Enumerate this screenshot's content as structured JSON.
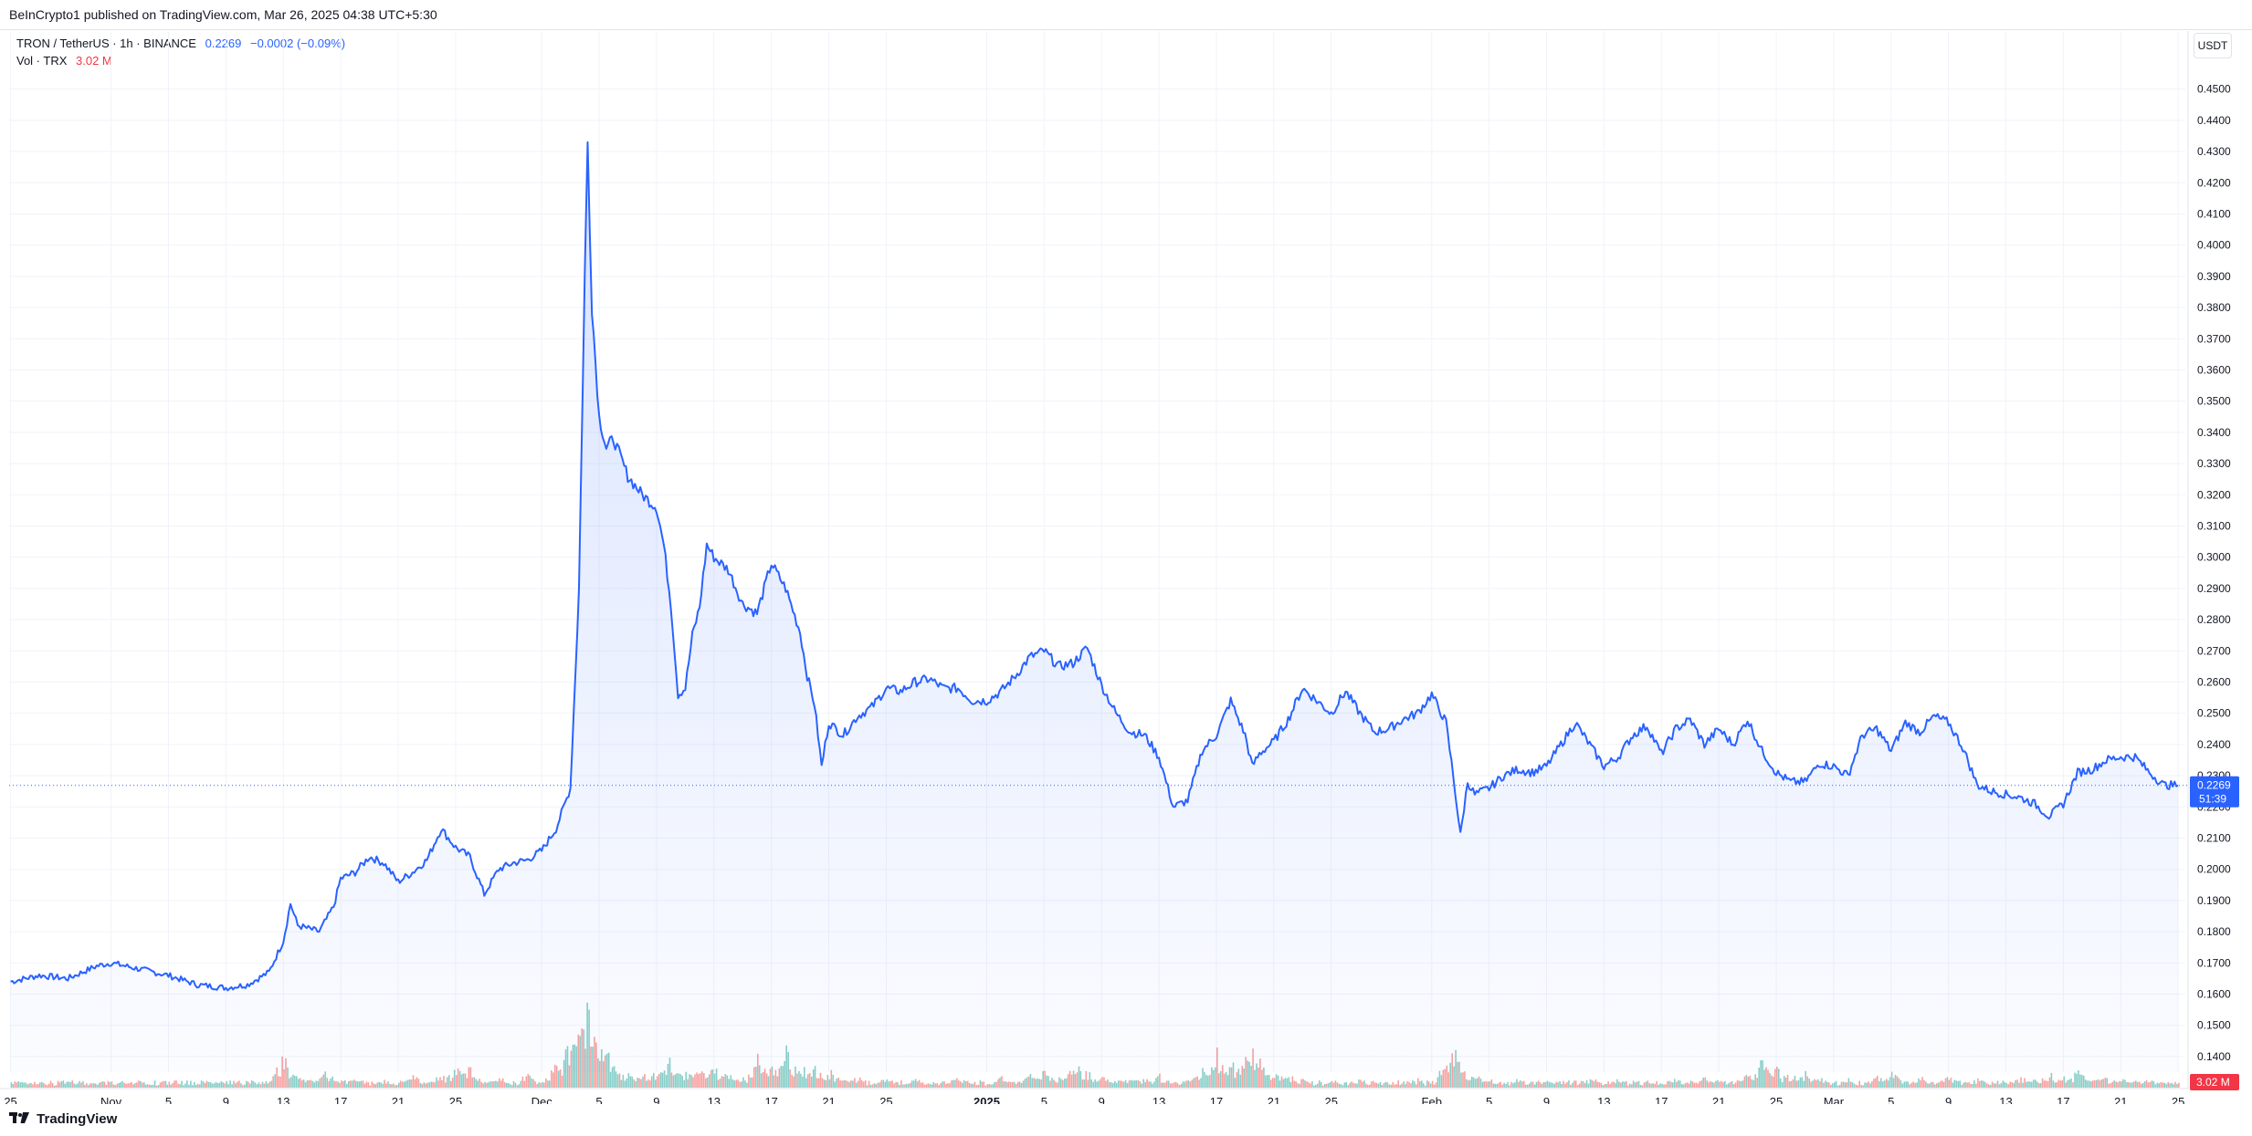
{
  "header": {
    "published": "BeInCrypto1 published on TradingView.com, Mar 26, 2025 04:38 UTC+5:30"
  },
  "legend": {
    "symbol": "TRON / TetherUS · 1h · BINANCE",
    "last_price": "0.2269",
    "change": "−0.0002 (−0.09%)",
    "volume_label": "Vol · TRX",
    "volume_value": "3.02 M"
  },
  "axis": {
    "unit": "USDT",
    "price_badge": "0.2269",
    "countdown": "51:39",
    "volume_badge": "3.02 M"
  },
  "footer": {
    "brand": "TradingView"
  },
  "colors": {
    "line": "#2962ff",
    "up_volume": "#26a69a",
    "down_volume": "#ef5350",
    "grid": "#f0f3fa"
  },
  "chart_data": {
    "type": "area",
    "title": "TRON / TetherUS · 1h · BINANCE",
    "ylabel": "USDT",
    "ylim": [
      0.135,
      0.4575
    ],
    "y_ticks": [
      "0.1400",
      "0.1500",
      "0.1600",
      "0.1700",
      "0.1800",
      "0.1900",
      "0.2000",
      "0.2100",
      "0.2200",
      "0.2300",
      "0.2400",
      "0.2500",
      "0.2600",
      "0.2700",
      "0.2800",
      "0.2900",
      "0.3000",
      "0.3100",
      "0.3200",
      "0.3300",
      "0.3400",
      "0.3500",
      "0.3600",
      "0.3700",
      "0.3800",
      "0.3900",
      "0.4000",
      "0.4100",
      "0.4200",
      "0.4300",
      "0.4400",
      "0.4500"
    ],
    "x_ticks": [
      {
        "label": "25",
        "day": 0
      },
      {
        "label": "Nov",
        "day": 7
      },
      {
        "label": "5",
        "day": 11
      },
      {
        "label": "9",
        "day": 15
      },
      {
        "label": "13",
        "day": 19
      },
      {
        "label": "17",
        "day": 23
      },
      {
        "label": "21",
        "day": 27
      },
      {
        "label": "25",
        "day": 31
      },
      {
        "label": "Dec",
        "day": 37
      },
      {
        "label": "5",
        "day": 41
      },
      {
        "label": "9",
        "day": 45
      },
      {
        "label": "13",
        "day": 49
      },
      {
        "label": "17",
        "day": 53
      },
      {
        "label": "21",
        "day": 57
      },
      {
        "label": "25",
        "day": 61
      },
      {
        "label": "2025",
        "day": 68
      },
      {
        "label": "5",
        "day": 72
      },
      {
        "label": "9",
        "day": 76
      },
      {
        "label": "13",
        "day": 80
      },
      {
        "label": "17",
        "day": 84
      },
      {
        "label": "21",
        "day": 88
      },
      {
        "label": "25",
        "day": 92
      },
      {
        "label": "Feb",
        "day": 99
      },
      {
        "label": "5",
        "day": 103
      },
      {
        "label": "9",
        "day": 107
      },
      {
        "label": "13",
        "day": 111
      },
      {
        "label": "17",
        "day": 115
      },
      {
        "label": "21",
        "day": 119
      },
      {
        "label": "25",
        "day": 123
      },
      {
        "label": "Mar",
        "day": 127
      },
      {
        "label": "5",
        "day": 131
      },
      {
        "label": "9",
        "day": 135
      },
      {
        "label": "13",
        "day": 139
      },
      {
        "label": "17",
        "day": 143
      },
      {
        "label": "21",
        "day": 147
      },
      {
        "label": "25",
        "day": 151
      }
    ],
    "x_range_days": [
      -0.1,
      151.5
    ],
    "series": [
      {
        "price": [
          [
            0,
            0.164
          ],
          [
            2,
            0.166
          ],
          [
            4,
            0.165
          ],
          [
            6,
            0.169
          ],
          [
            7,
            0.17
          ],
          [
            9,
            0.168
          ],
          [
            11,
            0.166
          ],
          [
            13,
            0.163
          ],
          [
            15,
            0.162
          ],
          [
            16.5,
            0.163
          ],
          [
            18,
            0.167
          ],
          [
            19,
            0.177
          ],
          [
            19.5,
            0.189
          ],
          [
            20,
            0.182
          ],
          [
            21.5,
            0.18
          ],
          [
            22.5,
            0.188
          ],
          [
            23,
            0.197
          ],
          [
            24,
            0.199
          ],
          [
            25,
            0.204
          ],
          [
            26,
            0.202
          ],
          [
            27,
            0.196
          ],
          [
            28,
            0.199
          ],
          [
            29,
            0.203
          ],
          [
            30,
            0.213
          ],
          [
            31,
            0.207
          ],
          [
            32,
            0.204
          ],
          [
            33,
            0.192
          ],
          [
            34,
            0.2
          ],
          [
            35,
            0.202
          ],
          [
            36,
            0.203
          ],
          [
            37,
            0.206
          ],
          [
            38,
            0.213
          ],
          [
            39,
            0.226
          ],
          [
            39.6,
            0.29
          ],
          [
            40,
            0.39
          ],
          [
            40.2,
            0.433
          ],
          [
            40.5,
            0.38
          ],
          [
            41,
            0.345
          ],
          [
            41.5,
            0.335
          ],
          [
            42,
            0.338
          ],
          [
            43,
            0.326
          ],
          [
            44,
            0.32
          ],
          [
            45,
            0.316
          ],
          [
            45.5,
            0.304
          ],
          [
            46,
            0.285
          ],
          [
            46.5,
            0.256
          ],
          [
            47,
            0.258
          ],
          [
            47.5,
            0.275
          ],
          [
            48,
            0.284
          ],
          [
            48.5,
            0.304
          ],
          [
            49,
            0.3
          ],
          [
            50,
            0.296
          ],
          [
            51,
            0.285
          ],
          [
            52,
            0.282
          ],
          [
            53,
            0.298
          ],
          [
            54,
            0.29
          ],
          [
            55,
            0.276
          ],
          [
            55.5,
            0.262
          ],
          [
            56,
            0.253
          ],
          [
            56.5,
            0.233
          ],
          [
            57,
            0.247
          ],
          [
            58,
            0.243
          ],
          [
            59,
            0.249
          ],
          [
            60,
            0.252
          ],
          [
            61,
            0.258
          ],
          [
            62,
            0.257
          ],
          [
            63,
            0.26
          ],
          [
            64,
            0.261
          ],
          [
            65,
            0.258
          ],
          [
            66,
            0.258
          ],
          [
            67,
            0.254
          ],
          [
            68,
            0.254
          ],
          [
            69,
            0.257
          ],
          [
            70,
            0.262
          ],
          [
            71,
            0.268
          ],
          [
            72,
            0.27
          ],
          [
            73,
            0.265
          ],
          [
            74,
            0.266
          ],
          [
            75,
            0.271
          ],
          [
            76,
            0.259
          ],
          [
            77,
            0.25
          ],
          [
            78,
            0.244
          ],
          [
            79,
            0.243
          ],
          [
            80,
            0.236
          ],
          [
            81,
            0.22
          ],
          [
            82,
            0.222
          ],
          [
            83,
            0.238
          ],
          [
            84,
            0.243
          ],
          [
            85,
            0.254
          ],
          [
            86,
            0.243
          ],
          [
            86.5,
            0.233
          ],
          [
            87,
            0.237
          ],
          [
            88,
            0.241
          ],
          [
            89,
            0.248
          ],
          [
            90,
            0.258
          ],
          [
            91,
            0.254
          ],
          [
            92,
            0.25
          ],
          [
            93,
            0.257
          ],
          [
            94,
            0.25
          ],
          [
            95,
            0.244
          ],
          [
            96,
            0.245
          ],
          [
            97,
            0.248
          ],
          [
            98,
            0.25
          ],
          [
            99,
            0.256
          ],
          [
            100,
            0.247
          ],
          [
            100.5,
            0.23
          ],
          [
            101,
            0.211
          ],
          [
            101.5,
            0.228
          ],
          [
            102,
            0.224
          ],
          [
            103,
            0.226
          ],
          [
            104,
            0.23
          ],
          [
            105,
            0.232
          ],
          [
            106,
            0.231
          ],
          [
            107,
            0.233
          ],
          [
            108,
            0.24
          ],
          [
            109,
            0.247
          ],
          [
            110,
            0.24
          ],
          [
            111,
            0.233
          ],
          [
            112,
            0.236
          ],
          [
            113,
            0.243
          ],
          [
            114,
            0.246
          ],
          [
            115,
            0.237
          ],
          [
            116,
            0.245
          ],
          [
            117,
            0.248
          ],
          [
            118,
            0.24
          ],
          [
            119,
            0.245
          ],
          [
            120,
            0.24
          ],
          [
            121,
            0.248
          ],
          [
            122,
            0.238
          ],
          [
            123,
            0.231
          ],
          [
            124,
            0.228
          ],
          [
            125,
            0.228
          ],
          [
            126,
            0.234
          ],
          [
            127,
            0.233
          ],
          [
            128,
            0.23
          ],
          [
            129,
            0.243
          ],
          [
            130,
            0.245
          ],
          [
            131,
            0.238
          ],
          [
            132,
            0.247
          ],
          [
            133,
            0.244
          ],
          [
            134,
            0.249
          ],
          [
            135,
            0.247
          ],
          [
            136,
            0.239
          ],
          [
            137,
            0.227
          ],
          [
            138,
            0.225
          ],
          [
            139,
            0.224
          ],
          [
            140,
            0.223
          ],
          [
            141,
            0.221
          ],
          [
            142,
            0.217
          ],
          [
            143,
            0.221
          ],
          [
            144,
            0.231
          ],
          [
            145,
            0.232
          ],
          [
            146,
            0.235
          ],
          [
            147,
            0.236
          ],
          [
            148,
            0.236
          ],
          [
            149,
            0.231
          ],
          [
            150,
            0.227
          ],
          [
            151,
            0.2269
          ]
        ]
      },
      {
        "volume_peaks": [
          [
            1,
            3
          ],
          [
            4,
            2
          ],
          [
            9,
            3
          ],
          [
            14,
            3
          ],
          [
            19,
            15
          ],
          [
            20,
            6
          ],
          [
            21,
            5
          ],
          [
            22,
            8
          ],
          [
            24,
            5
          ],
          [
            26,
            4
          ],
          [
            28,
            6
          ],
          [
            30,
            7
          ],
          [
            31,
            9
          ],
          [
            32,
            11
          ],
          [
            34,
            5
          ],
          [
            36,
            7
          ],
          [
            38,
            11
          ],
          [
            39,
            23
          ],
          [
            39.7,
            30
          ],
          [
            40.2,
            41
          ],
          [
            40.8,
            26
          ],
          [
            41.5,
            16
          ],
          [
            42,
            12
          ],
          [
            43,
            8
          ],
          [
            44,
            7
          ],
          [
            45,
            8
          ],
          [
            46,
            14
          ],
          [
            47,
            9
          ],
          [
            48,
            8
          ],
          [
            49,
            10
          ],
          [
            50,
            7
          ],
          [
            51,
            6
          ],
          [
            52,
            14
          ],
          [
            53,
            11
          ],
          [
            54,
            18
          ],
          [
            55,
            12
          ],
          [
            56,
            10
          ],
          [
            57,
            8
          ],
          [
            58,
            6
          ],
          [
            59,
            5
          ],
          [
            61,
            5
          ],
          [
            63,
            4
          ],
          [
            66,
            5
          ],
          [
            67,
            3
          ],
          [
            69,
            5
          ],
          [
            71,
            6
          ],
          [
            72,
            8
          ],
          [
            73,
            5
          ],
          [
            74,
            14
          ],
          [
            75,
            8
          ],
          [
            76,
            5
          ],
          [
            78,
            6
          ],
          [
            79,
            4
          ],
          [
            80,
            6
          ],
          [
            82,
            4
          ],
          [
            83,
            8
          ],
          [
            84,
            17
          ],
          [
            85,
            12
          ],
          [
            86,
            14
          ],
          [
            86.6,
            18
          ],
          [
            87,
            13
          ],
          [
            88,
            8
          ],
          [
            89,
            6
          ],
          [
            90,
            4
          ],
          [
            92,
            3
          ],
          [
            94,
            4
          ],
          [
            96,
            3
          ],
          [
            98,
            4
          ],
          [
            100,
            12
          ],
          [
            100.6,
            18
          ],
          [
            101,
            10
          ],
          [
            102,
            6
          ],
          [
            103,
            4
          ],
          [
            105,
            4
          ],
          [
            107,
            3
          ],
          [
            108,
            4
          ],
          [
            110,
            5
          ],
          [
            112,
            4
          ],
          [
            114,
            3
          ],
          [
            116,
            4
          ],
          [
            118,
            5
          ],
          [
            119,
            4
          ],
          [
            121,
            6
          ],
          [
            122,
            13
          ],
          [
            123,
            9
          ],
          [
            124,
            7
          ],
          [
            125,
            8
          ],
          [
            126,
            5
          ],
          [
            128,
            4
          ],
          [
            130,
            5
          ],
          [
            131,
            7
          ],
          [
            133,
            5
          ],
          [
            135,
            6
          ],
          [
            137,
            4
          ],
          [
            139,
            3
          ],
          [
            140,
            5
          ],
          [
            141,
            4
          ],
          [
            142,
            7
          ],
          [
            143,
            5
          ],
          [
            144,
            8
          ],
          [
            145,
            7
          ],
          [
            146,
            5
          ],
          [
            147,
            4
          ],
          [
            148,
            3
          ],
          [
            149,
            4
          ],
          [
            150,
            3
          ],
          [
            151,
            3
          ]
        ],
        "volume_last": "3.02 M"
      }
    ],
    "current_price": 0.2269,
    "grid": true
  }
}
